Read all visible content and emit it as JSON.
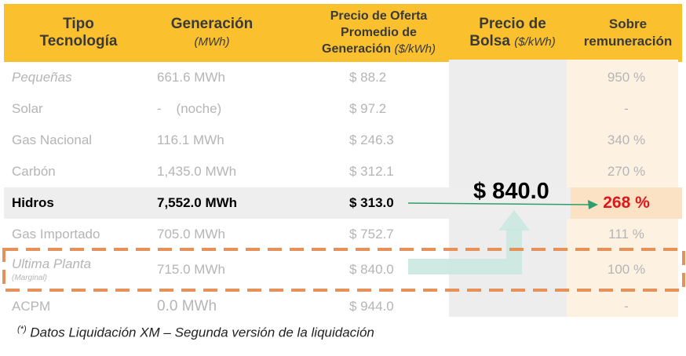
{
  "header": {
    "col1": "Tipo Tecnología",
    "col2_title": "Generación",
    "col2_unit": "(MWh)",
    "col3_title": "Precio de Oferta Promedio de Generación",
    "col3_unit": "($/kWh)",
    "col4_title": "Precio de Bolsa",
    "col4_unit": "($/kWh)",
    "col5_title": "Sobre remuneración"
  },
  "rows": [
    {
      "tech": "Pequeñas",
      "gen": "661.6 MWh",
      "price": "$ 88.2",
      "over": "950 %"
    },
    {
      "tech": "Solar",
      "gen": "-    (noche)",
      "price": "$ 97.2",
      "over": "-"
    },
    {
      "tech": "Gas Nacional",
      "gen": "116.1 MWh",
      "price": "$ 246.3",
      "over": "340 %"
    },
    {
      "tech": "Carbón",
      "gen": "1,435.0 MWh",
      "price": "$ 312.1",
      "over": "270 %"
    },
    {
      "tech": "Hidros",
      "gen": "7,552.0 MWh",
      "price": "$ 313.0",
      "over": "268 %"
    },
    {
      "tech": "Gas Importado",
      "gen": "705.0 MWh",
      "price": "$ 752.7",
      "over": "111 %"
    },
    {
      "tech": "Ultima Planta",
      "tech_note": "(Marginal)",
      "gen": "715.0 MWh",
      "price": "$ 840.0",
      "over": "100 %"
    },
    {
      "tech": "ACPM",
      "gen": "0.0 MWh",
      "price": "$ 944.0",
      "over": "-"
    }
  ],
  "bolsa_price": "$ 840.0",
  "footnote_mark": "(*)",
  "footnote": "Datos Liquidación XM – Segunda versión de la liquidación",
  "colors": {
    "header": "#fbc02d",
    "highlight_pct": "#e0161b",
    "dashed": "#e6915a",
    "arrow": "#c9e8e0",
    "thin_arrow": "#2e9e6c"
  }
}
